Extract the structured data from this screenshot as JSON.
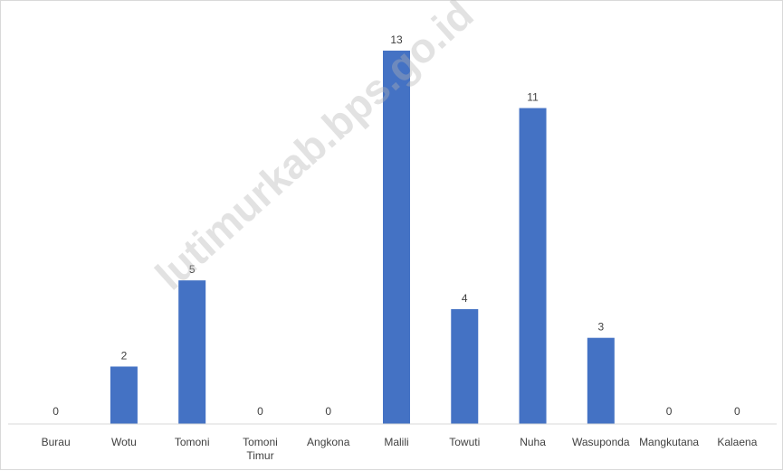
{
  "chart_data": {
    "type": "bar",
    "categories": [
      "Burau",
      "Wotu",
      "Tomoni",
      "Tomoni Timur",
      "Angkona",
      "Malili",
      "Towuti",
      "Nuha",
      "Wasuponda",
      "Mangkutana",
      "Kalaena"
    ],
    "values": [
      0,
      2,
      5,
      0,
      0,
      13,
      4,
      11,
      3,
      0,
      0
    ],
    "ylim": [
      0,
      13
    ],
    "grid": false,
    "legend": "none",
    "colors": {
      "bar": "#4472C4",
      "axis": "#d9d9d9"
    }
  },
  "watermark": {
    "text": "lutimurkab.bps.go.id"
  }
}
